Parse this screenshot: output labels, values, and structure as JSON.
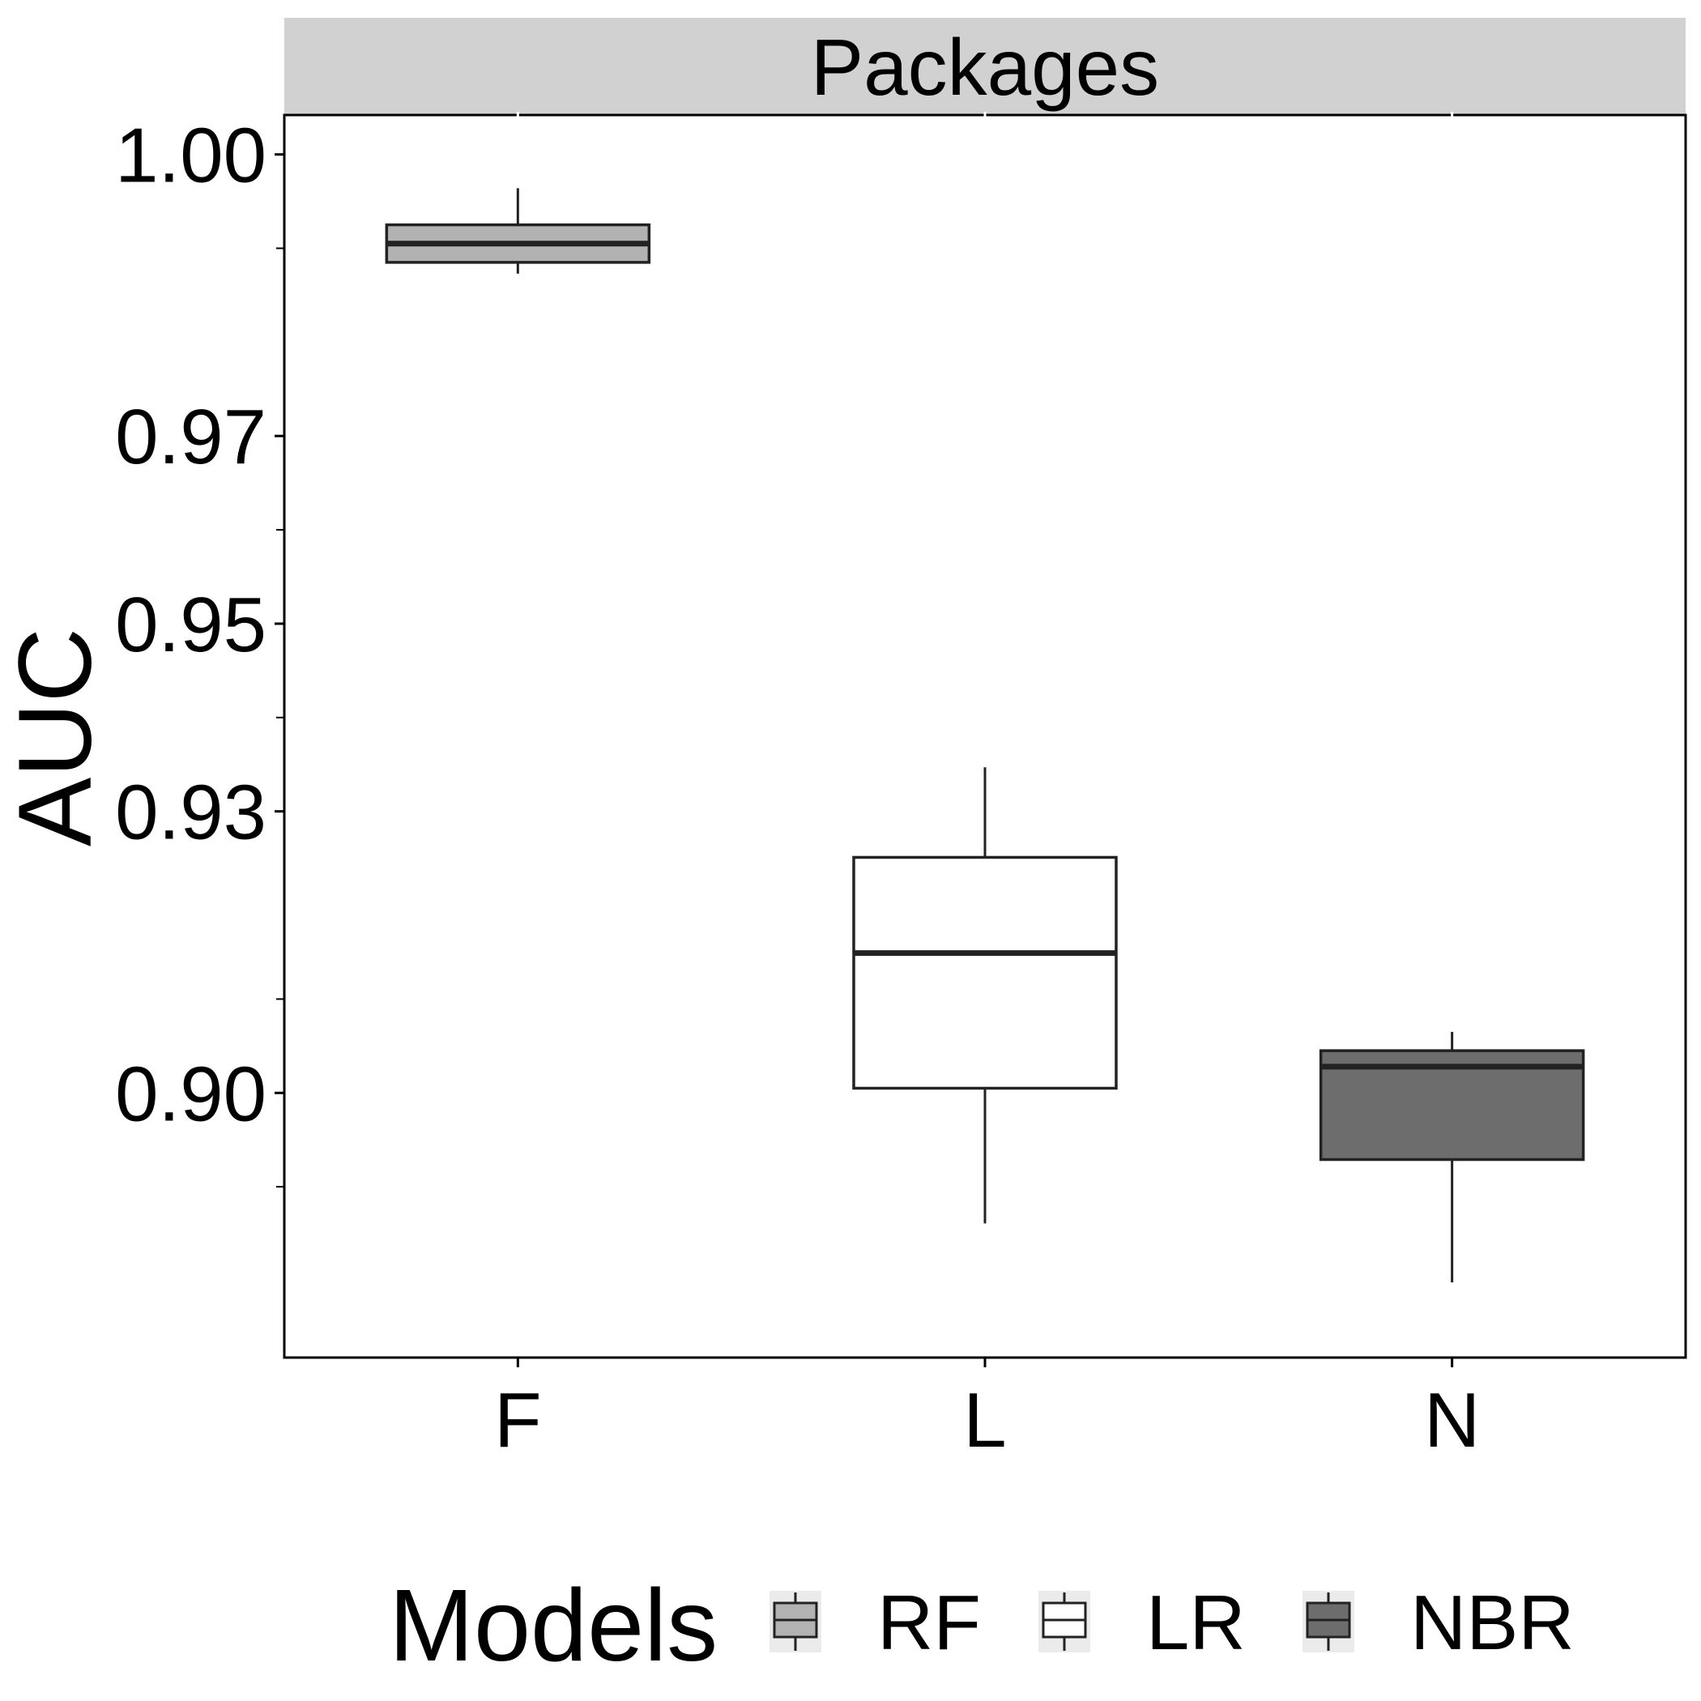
{
  "chart_data": {
    "type": "box",
    "facet_label": "Packages",
    "ylabel": "AUC",
    "xlabel": "",
    "ylim": [
      0.8718,
      1.0042
    ],
    "y_ticks": [
      {
        "value": 1.0,
        "label": "1.00"
      },
      {
        "value": 0.97,
        "label": "0.97"
      },
      {
        "value": 0.95,
        "label": "0.95"
      },
      {
        "value": 0.93,
        "label": "0.93"
      },
      {
        "value": 0.9,
        "label": "0.90"
      }
    ],
    "y_minor_ticks": [
      0.99,
      0.96,
      0.94,
      0.91,
      0.89
    ],
    "categories": [
      "F",
      "L",
      "N"
    ],
    "series": [
      {
        "category": "F",
        "model": "RF",
        "color": "#b2b2b2",
        "whisker_low": 0.9873,
        "q1": 0.9885,
        "median": 0.9905,
        "q3": 0.9925,
        "whisker_high": 0.9964
      },
      {
        "category": "L",
        "model": "LR",
        "color": "#ffffff",
        "whisker_low": 0.8861,
        "q1": 0.9005,
        "median": 0.9149,
        "q3": 0.9251,
        "whisker_high": 0.9347
      },
      {
        "category": "N",
        "model": "NBR",
        "color": "#6d6d6d",
        "whisker_low": 0.8798,
        "q1": 0.8929,
        "median": 0.9028,
        "q3": 0.9045,
        "whisker_high": 0.9065
      }
    ],
    "legend": {
      "title": "Models",
      "position": "bottom",
      "items": [
        {
          "label": "RF",
          "color": "#b2b2b2"
        },
        {
          "label": "LR",
          "color": "#ffffff"
        },
        {
          "label": "NBR",
          "color": "#6d6d6d"
        }
      ]
    },
    "grid": false
  }
}
